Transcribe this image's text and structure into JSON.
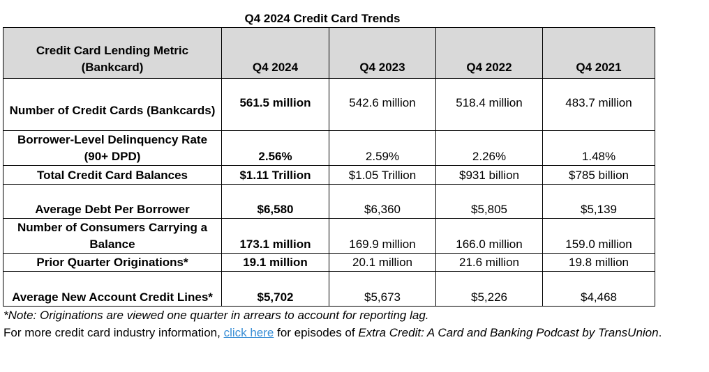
{
  "title": "Q4 2024 Credit Card Trends",
  "table": {
    "headers": [
      "Credit Card Lending Metric (Bankcard)",
      "Q4 2024",
      "Q4 2023",
      "Q4 2022",
      "Q4 2021"
    ],
    "rows": [
      {
        "metric": "Number of Credit Cards (Bankcards)",
        "values": [
          "561.5 million",
          "542.6 million",
          "518.4 million",
          "483.7 million"
        ]
      },
      {
        "metric": "Borrower-Level Delinquency Rate (90+ DPD)",
        "values": [
          "2.56%",
          "2.59%",
          "2.26%",
          "1.48%"
        ]
      },
      {
        "metric": "Total Credit Card Balances",
        "values": [
          "$1.11 Trillion",
          "$1.05 Trillion",
          "$931 billion",
          "$785 billion"
        ]
      },
      {
        "metric": "Average Debt Per Borrower",
        "values": [
          "$6,580",
          "$6,360",
          "$5,805",
          "$5,139"
        ]
      },
      {
        "metric": "Number of Consumers Carrying a Balance",
        "values": [
          "173.1 million",
          "169.9 million",
          "166.0 million",
          "159.0 million"
        ]
      },
      {
        "metric": "Prior Quarter Originations*",
        "values": [
          "19.1 million",
          "20.1 million",
          "21.6 million",
          "19.8 million"
        ]
      },
      {
        "metric": "Average New Account Credit Lines*",
        "values": [
          "$5,702",
          "$5,673",
          "$5,226",
          "$4,468"
        ]
      }
    ]
  },
  "note": "*Note: Originations are viewed one quarter in arrears to account for reporting lag.",
  "more_info": {
    "prefix": "For more credit card industry information, ",
    "link_text": "click here",
    "middle": " for episodes of ",
    "podcast_title": "Extra Credit: A Card and Banking Podcast by TransUnion",
    "suffix": "."
  },
  "colors": {
    "header_bg": "#d9d9d9",
    "link": "#3b8fd6"
  }
}
